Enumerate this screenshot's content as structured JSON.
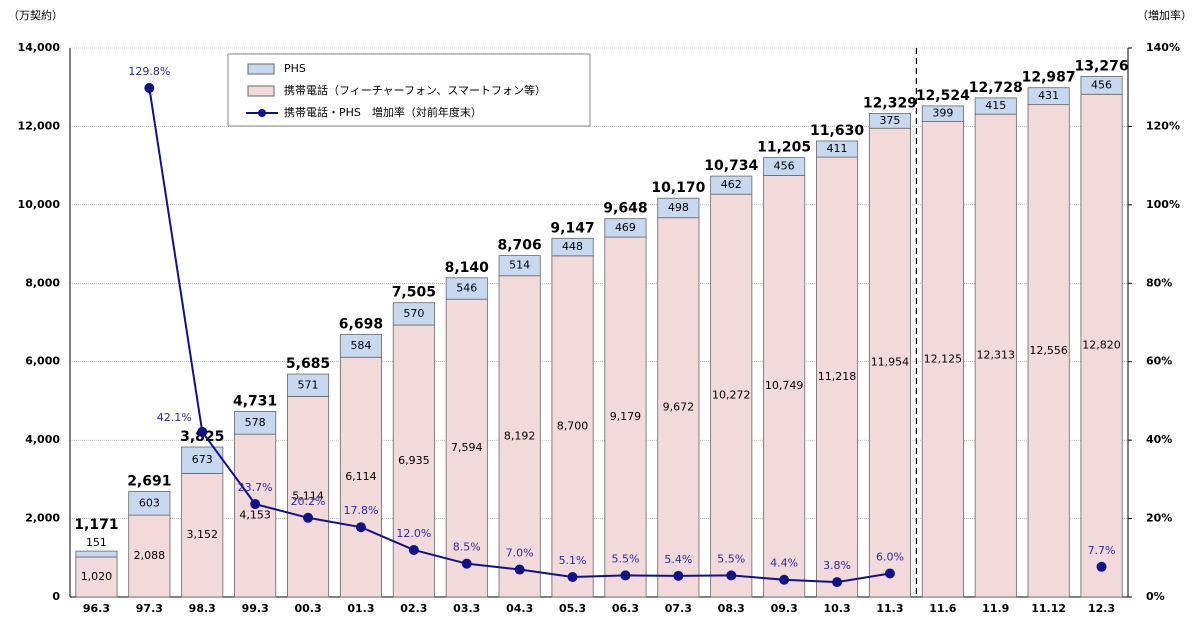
{
  "chart_data": {
    "type": "bar-line",
    "y_label": "（万契約）",
    "y2_label": "（増加率）",
    "categories": [
      "96.3",
      "97.3",
      "98.3",
      "99.3",
      "00.3",
      "01.3",
      "02.3",
      "03.3",
      "04.3",
      "05.3",
      "06.3",
      "07.3",
      "08.3",
      "09.3",
      "10.3",
      "11.3",
      "11.6",
      "11.9",
      "11.12",
      "12.3"
    ],
    "series": [
      {
        "name": "携帯電話（フィーチャーフォン、スマートフォン等）",
        "color": "#f3dada",
        "kind": "bar",
        "values": [
          1020,
          2088,
          3152,
          4153,
          5114,
          6114,
          6935,
          7594,
          8192,
          8700,
          9179,
          9672,
          10272,
          10749,
          11218,
          11954,
          12125,
          12313,
          12556,
          12820
        ],
        "value_labels": [
          "1,020",
          "2,088",
          "3,152",
          "4,153",
          "5,114",
          "6,114",
          "6,935",
          "7,594",
          "8,192",
          "8,700",
          "9,179",
          "9,672",
          "10,272",
          "10,749",
          "11,218",
          "11,954",
          "12,125",
          "12,313",
          "12,556",
          "12,820"
        ]
      },
      {
        "name": "PHS",
        "color": "#c6d9f1",
        "kind": "bar",
        "values": [
          151,
          603,
          673,
          578,
          571,
          584,
          570,
          546,
          514,
          448,
          469,
          498,
          462,
          456,
          411,
          375,
          399,
          415,
          431,
          456
        ]
      },
      {
        "name": "携帯電話・PHS　増加率（対前年度末）",
        "color": "#10128a",
        "kind": "line",
        "axis": "y2",
        "values": [
          null,
          129.8,
          42.1,
          23.7,
          20.2,
          17.8,
          12.0,
          8.5,
          7.0,
          5.1,
          5.5,
          5.4,
          5.5,
          4.4,
          3.8,
          6.0,
          null,
          null,
          null,
          7.7
        ],
        "value_labels": [
          null,
          "129.8%",
          "42.1%",
          "23.7%",
          "20.2%",
          "17.8%",
          "12.0%",
          "8.5%",
          "7.0%",
          "5.1%",
          "5.5%",
          "5.4%",
          "5.5%",
          "4.4%",
          "3.8%",
          "6.0%",
          null,
          null,
          null,
          "7.7%"
        ]
      }
    ],
    "totals": [
      1171,
      2691,
      3825,
      4731,
      5685,
      6698,
      7505,
      8140,
      8706,
      9147,
      9648,
      10170,
      10734,
      11205,
      11630,
      12329,
      12524,
      12728,
      12987,
      13276
    ],
    "total_labels": [
      "1,171",
      "2,691",
      "3,825",
      "4,731",
      "5,685",
      "6,698",
      "7,505",
      "8,140",
      "8,706",
      "9,147",
      "9,648",
      "10,170",
      "10,734",
      "11,205",
      "11,630",
      "12,329",
      "12,524",
      "12,728",
      "12,987",
      "13,276"
    ],
    "ylim": [
      0,
      14000
    ],
    "yticks": [
      0,
      {
        "value": 2000,
        "label": "2,000"
      },
      {
        "value": 4000,
        "label": "4,000"
      },
      {
        "value": 6000,
        "label": "6,000"
      },
      {
        "value": 8000,
        "label": "8,000"
      },
      {
        "value": 10000,
        "label": "10,000"
      },
      {
        "value": 12000,
        "label": "12,000"
      },
      {
        "value": 14000,
        "label": "14,000"
      }
    ],
    "y2lim": [
      0,
      140
    ],
    "y2ticks": [
      {
        "value": 0,
        "label": "0%"
      },
      {
        "value": 20,
        "label": "20%"
      },
      {
        "value": 40,
        "label": "40%"
      },
      {
        "value": 60,
        "label": "60%"
      },
      {
        "value": 80,
        "label": "80%"
      },
      {
        "value": 100,
        "label": "100%"
      },
      {
        "value": 120,
        "label": "120%"
      },
      {
        "value": 140,
        "label": "140%"
      }
    ],
    "grid": true
  }
}
